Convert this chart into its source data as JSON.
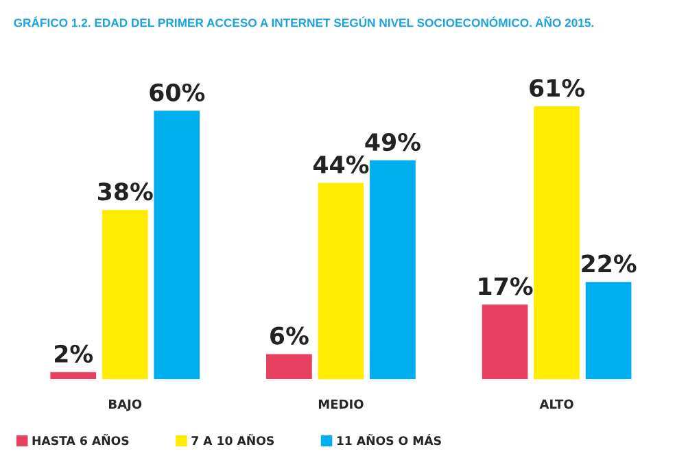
{
  "chart_data": {
    "type": "bar",
    "title": "GRÁFICO 1.2. EDAD DEL PRIMER ACCESO A INTERNET SEGÚN NIVEL SOCIOECONÓMICO. AÑO 2015.",
    "categories": [
      "BAJO",
      "MEDIO",
      "ALTO"
    ],
    "series": [
      {
        "name": "HASTA 6 AÑOS",
        "color": "#e8415f",
        "values": [
          2,
          6,
          17
        ],
        "value_labels": [
          "2%",
          "6%",
          "17%"
        ]
      },
      {
        "name": "7 A 10 AÑOS",
        "color": "#ffec00",
        "values": [
          38,
          44,
          61
        ],
        "value_labels": [
          "38%",
          "44%",
          "61%"
        ]
      },
      {
        "name": "11 AÑOS O MÁS",
        "color": "#00aeef",
        "values": [
          60,
          49,
          22
        ],
        "value_labels": [
          "60%",
          "49%",
          "22%"
        ]
      }
    ],
    "legend": "bottom left",
    "grid": false
  }
}
